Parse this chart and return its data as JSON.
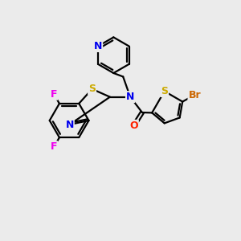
{
  "bg_color": "#ebebeb",
  "bond_color": "#000000",
  "bond_width": 1.6,
  "figsize": [
    3.0,
    3.0
  ],
  "dpi": 100,
  "xlim": [
    0,
    10
  ],
  "ylim": [
    0,
    10
  ],
  "colors": {
    "N": "#0000ee",
    "S": "#ccaa00",
    "O": "#ff2200",
    "F": "#ee00ee",
    "Br": "#cc6600",
    "C": "#000000"
  },
  "font_size": 9
}
